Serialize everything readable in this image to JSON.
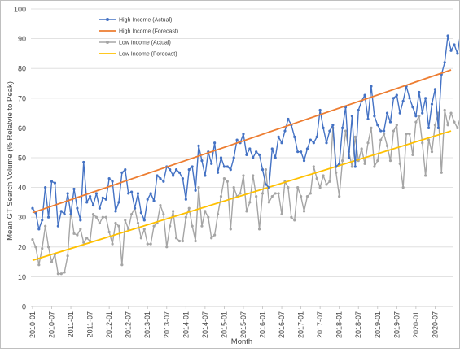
{
  "chart_data": {
    "type": "line",
    "title": "",
    "xlabel": "Month",
    "ylabel": "Mean GT Search Volume (% Relatvie to Peak)",
    "ylim": [
      0,
      100
    ],
    "y_ticks": [
      "0",
      "10",
      "20",
      "30",
      "40",
      "50",
      "60",
      "70",
      "80",
      "90",
      "100"
    ],
    "x_tick_labels": [
      "2010-01",
      "2010-07",
      "2011-01",
      "2011-07",
      "2012-01",
      "2012-07",
      "2013-01",
      "2013-07",
      "2014-01",
      "2014-07",
      "2015-01",
      "2015-07",
      "2016-01",
      "2016-07",
      "2017-01",
      "2017-07",
      "2018-01",
      "2018-07",
      "2019-01",
      "2019-07",
      "2020-01",
      "2020-07"
    ],
    "x_range": [
      "2010-01",
      "2020-12"
    ],
    "grid": "horizontal",
    "legend_position": "top-left",
    "series": [
      {
        "name": "High Income (Actual)",
        "color": "#4472c4",
        "style": "line-markers",
        "values": [
          33,
          31.5,
          26,
          29,
          40,
          30,
          42,
          41.5,
          27,
          32,
          31,
          38,
          31,
          39.5,
          33,
          29,
          48.5,
          35,
          37,
          34,
          38,
          33,
          36.5,
          36,
          43,
          42,
          32,
          35,
          45,
          46,
          38,
          38.5,
          33,
          38,
          31.5,
          29,
          36,
          38,
          35.5,
          44,
          43,
          42,
          47,
          46,
          44,
          46,
          45,
          43,
          36,
          46,
          47,
          39,
          54,
          49,
          44,
          52,
          48,
          55,
          45,
          50,
          47,
          47,
          46,
          50,
          56,
          55,
          58,
          51,
          53,
          50,
          52,
          51,
          46,
          41,
          40,
          53,
          50,
          57,
          55,
          59,
          63,
          61,
          57,
          52,
          52,
          49,
          53,
          56,
          55,
          57,
          66,
          60,
          55,
          59,
          61,
          47,
          48,
          60,
          67,
          50,
          64,
          47,
          66,
          69,
          71,
          63,
          74,
          64,
          61,
          59,
          59,
          65,
          62,
          70,
          71,
          65,
          69,
          74,
          70,
          67,
          64,
          72,
          65,
          70,
          60,
          68,
          73,
          60,
          78,
          82,
          91,
          86,
          88,
          85,
          92,
          87,
          92
        ]
      },
      {
        "name": "High Income (Forecast)",
        "color": "#ed7d31",
        "style": "line",
        "values": [
          31.5,
          79.5
        ]
      },
      {
        "name": "Low Income (Actual)",
        "color": "#a5a5a5",
        "style": "line-markers",
        "values": [
          22.5,
          20,
          14,
          19.5,
          27,
          20,
          15,
          17.5,
          11,
          11,
          11.5,
          17,
          32,
          24.5,
          24,
          26,
          21.5,
          23,
          22,
          31,
          30,
          28,
          30,
          30,
          25,
          21,
          28,
          27,
          14,
          29,
          26,
          31,
          33,
          28,
          23,
          26,
          21,
          21,
          27,
          28,
          34,
          31,
          20,
          27,
          32,
          23,
          22,
          22,
          30,
          33,
          27,
          22,
          40,
          27,
          32,
          30,
          23,
          24,
          31,
          37,
          43,
          42,
          26,
          40,
          37,
          38,
          44,
          32,
          35,
          44,
          37,
          26,
          38,
          46,
          35,
          37,
          38,
          38,
          31,
          42,
          40,
          30,
          29,
          40,
          37,
          32,
          37,
          38,
          47,
          43,
          40,
          44,
          41,
          42,
          60,
          45,
          37,
          49,
          59,
          52,
          47,
          57,
          49,
          53,
          48,
          55,
          60,
          47,
          49,
          56,
          58,
          54,
          49,
          59,
          61,
          48,
          40,
          58,
          58,
          51,
          62,
          64,
          55,
          44,
          56,
          52,
          61,
          65,
          45,
          66,
          61,
          65,
          62,
          60,
          64,
          65,
          60,
          63,
          65
        ]
      },
      {
        "name": "Low Income (Forecast)",
        "color": "#ffc000",
        "style": "line",
        "values": [
          15.5,
          59
        ]
      }
    ]
  }
}
